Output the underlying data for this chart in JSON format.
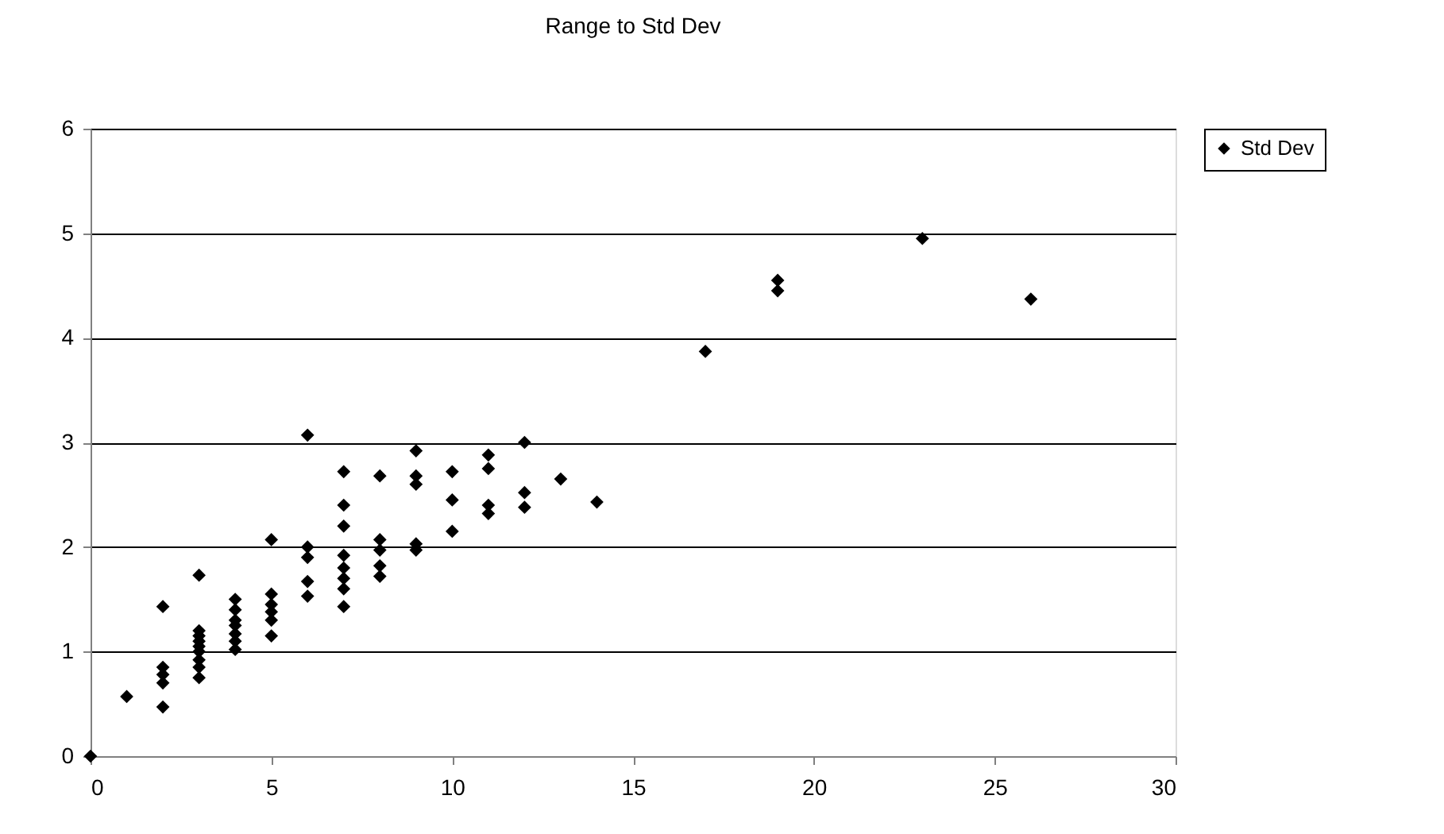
{
  "chart_data": {
    "type": "scatter",
    "title": "Range to Std Dev",
    "series": [
      {
        "name": "Std Dev",
        "color": "#000000",
        "x": [
          0,
          1,
          2,
          2,
          2,
          2,
          2,
          3,
          3,
          3,
          3,
          3,
          3,
          3,
          3,
          3,
          4,
          4,
          4,
          4,
          4,
          4,
          4,
          5,
          5,
          5,
          5,
          5,
          5,
          6,
          6,
          6,
          6,
          6,
          7,
          7,
          7,
          7,
          7,
          7,
          7,
          7,
          8,
          8,
          8,
          8,
          8,
          9,
          9,
          9,
          9,
          9,
          10,
          10,
          10,
          11,
          11,
          11,
          11,
          12,
          12,
          12,
          13,
          14,
          17,
          19,
          19,
          23,
          26
        ],
        "values": [
          0,
          0.57,
          0.47,
          0.7,
          0.78,
          0.85,
          1.43,
          0.75,
          0.85,
          0.92,
          1.0,
          1.05,
          1.1,
          1.15,
          1.2,
          1.73,
          1.02,
          1.1,
          1.17,
          1.25,
          1.3,
          1.4,
          1.5,
          1.15,
          1.3,
          1.38,
          1.45,
          1.55,
          2.07,
          1.53,
          1.67,
          1.9,
          2.0,
          3.07,
          1.43,
          1.6,
          1.7,
          1.8,
          1.92,
          2.2,
          2.4,
          2.72,
          1.72,
          1.82,
          1.97,
          2.07,
          2.68,
          1.97,
          2.03,
          2.6,
          2.68,
          2.92,
          2.15,
          2.45,
          2.72,
          2.32,
          2.4,
          2.75,
          2.88,
          2.38,
          2.52,
          3.0,
          2.65,
          2.43,
          3.87,
          4.45,
          4.55,
          4.95,
          4.37
        ]
      }
    ],
    "xlim": [
      0,
      30
    ],
    "xticks": [
      0,
      5,
      10,
      15,
      20,
      25,
      30
    ],
    "ylim": [
      0,
      6
    ],
    "yticks": [
      0,
      1,
      2,
      3,
      4,
      5,
      6
    ],
    "grid": "y",
    "legend": "right",
    "marker": "diamond"
  }
}
